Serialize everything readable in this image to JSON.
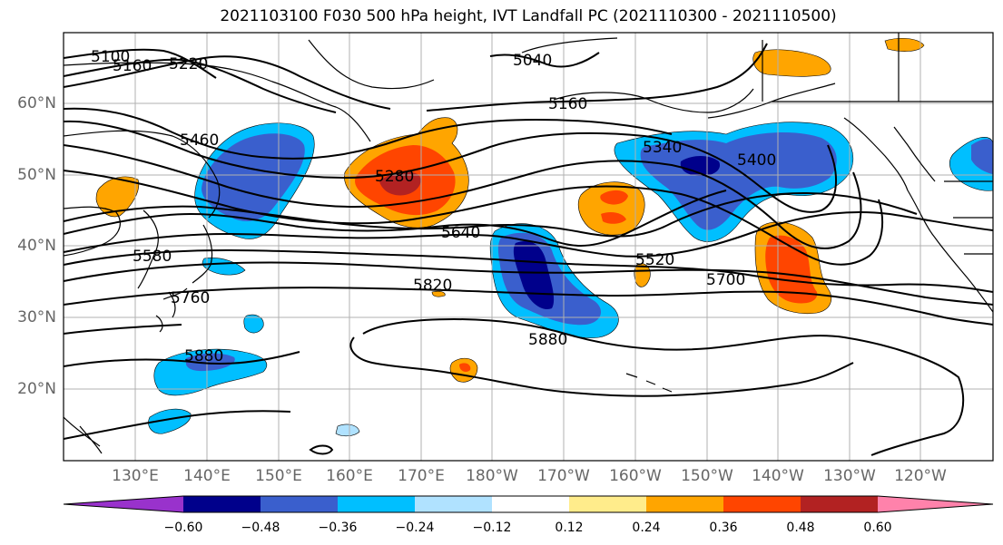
{
  "title": "2021103100 F030 500 hPa height, IVT Landfall PC (2021110300 - 2021110500)",
  "lat_labels": [
    "60°N",
    "50°N",
    "40°N",
    "30°N",
    "20°N"
  ],
  "lon_labels": [
    "130°E",
    "140°E",
    "150°E",
    "160°E",
    "170°E",
    "180°W",
    "170°W",
    "160°W",
    "150°W",
    "140°W",
    "130°W",
    "120°W"
  ],
  "contour_labels": [
    "5100",
    "5160",
    "5220",
    "5040",
    "5160",
    "5460",
    "5280",
    "5340",
    "5400",
    "5580",
    "5640",
    "5520",
    "5760",
    "5820",
    "5700",
    "5880",
    "5880"
  ],
  "colorbar": {
    "ticks": [
      "−0.60",
      "−0.48",
      "−0.36",
      "−0.24",
      "−0.12",
      "0.12",
      "0.24",
      "0.36",
      "0.48",
      "0.60"
    ],
    "colors": [
      "#9932cc",
      "#00008b",
      "#3a5fcd",
      "#00bfff",
      "#b0e2ff",
      "#ffffff",
      "#ffec8b",
      "#ffa500",
      "#ff4500",
      "#b22222",
      "#ff82ab"
    ]
  },
  "colors": {
    "contour": "#000000",
    "grid": "#b0b0b0",
    "coast": "#000000"
  }
}
